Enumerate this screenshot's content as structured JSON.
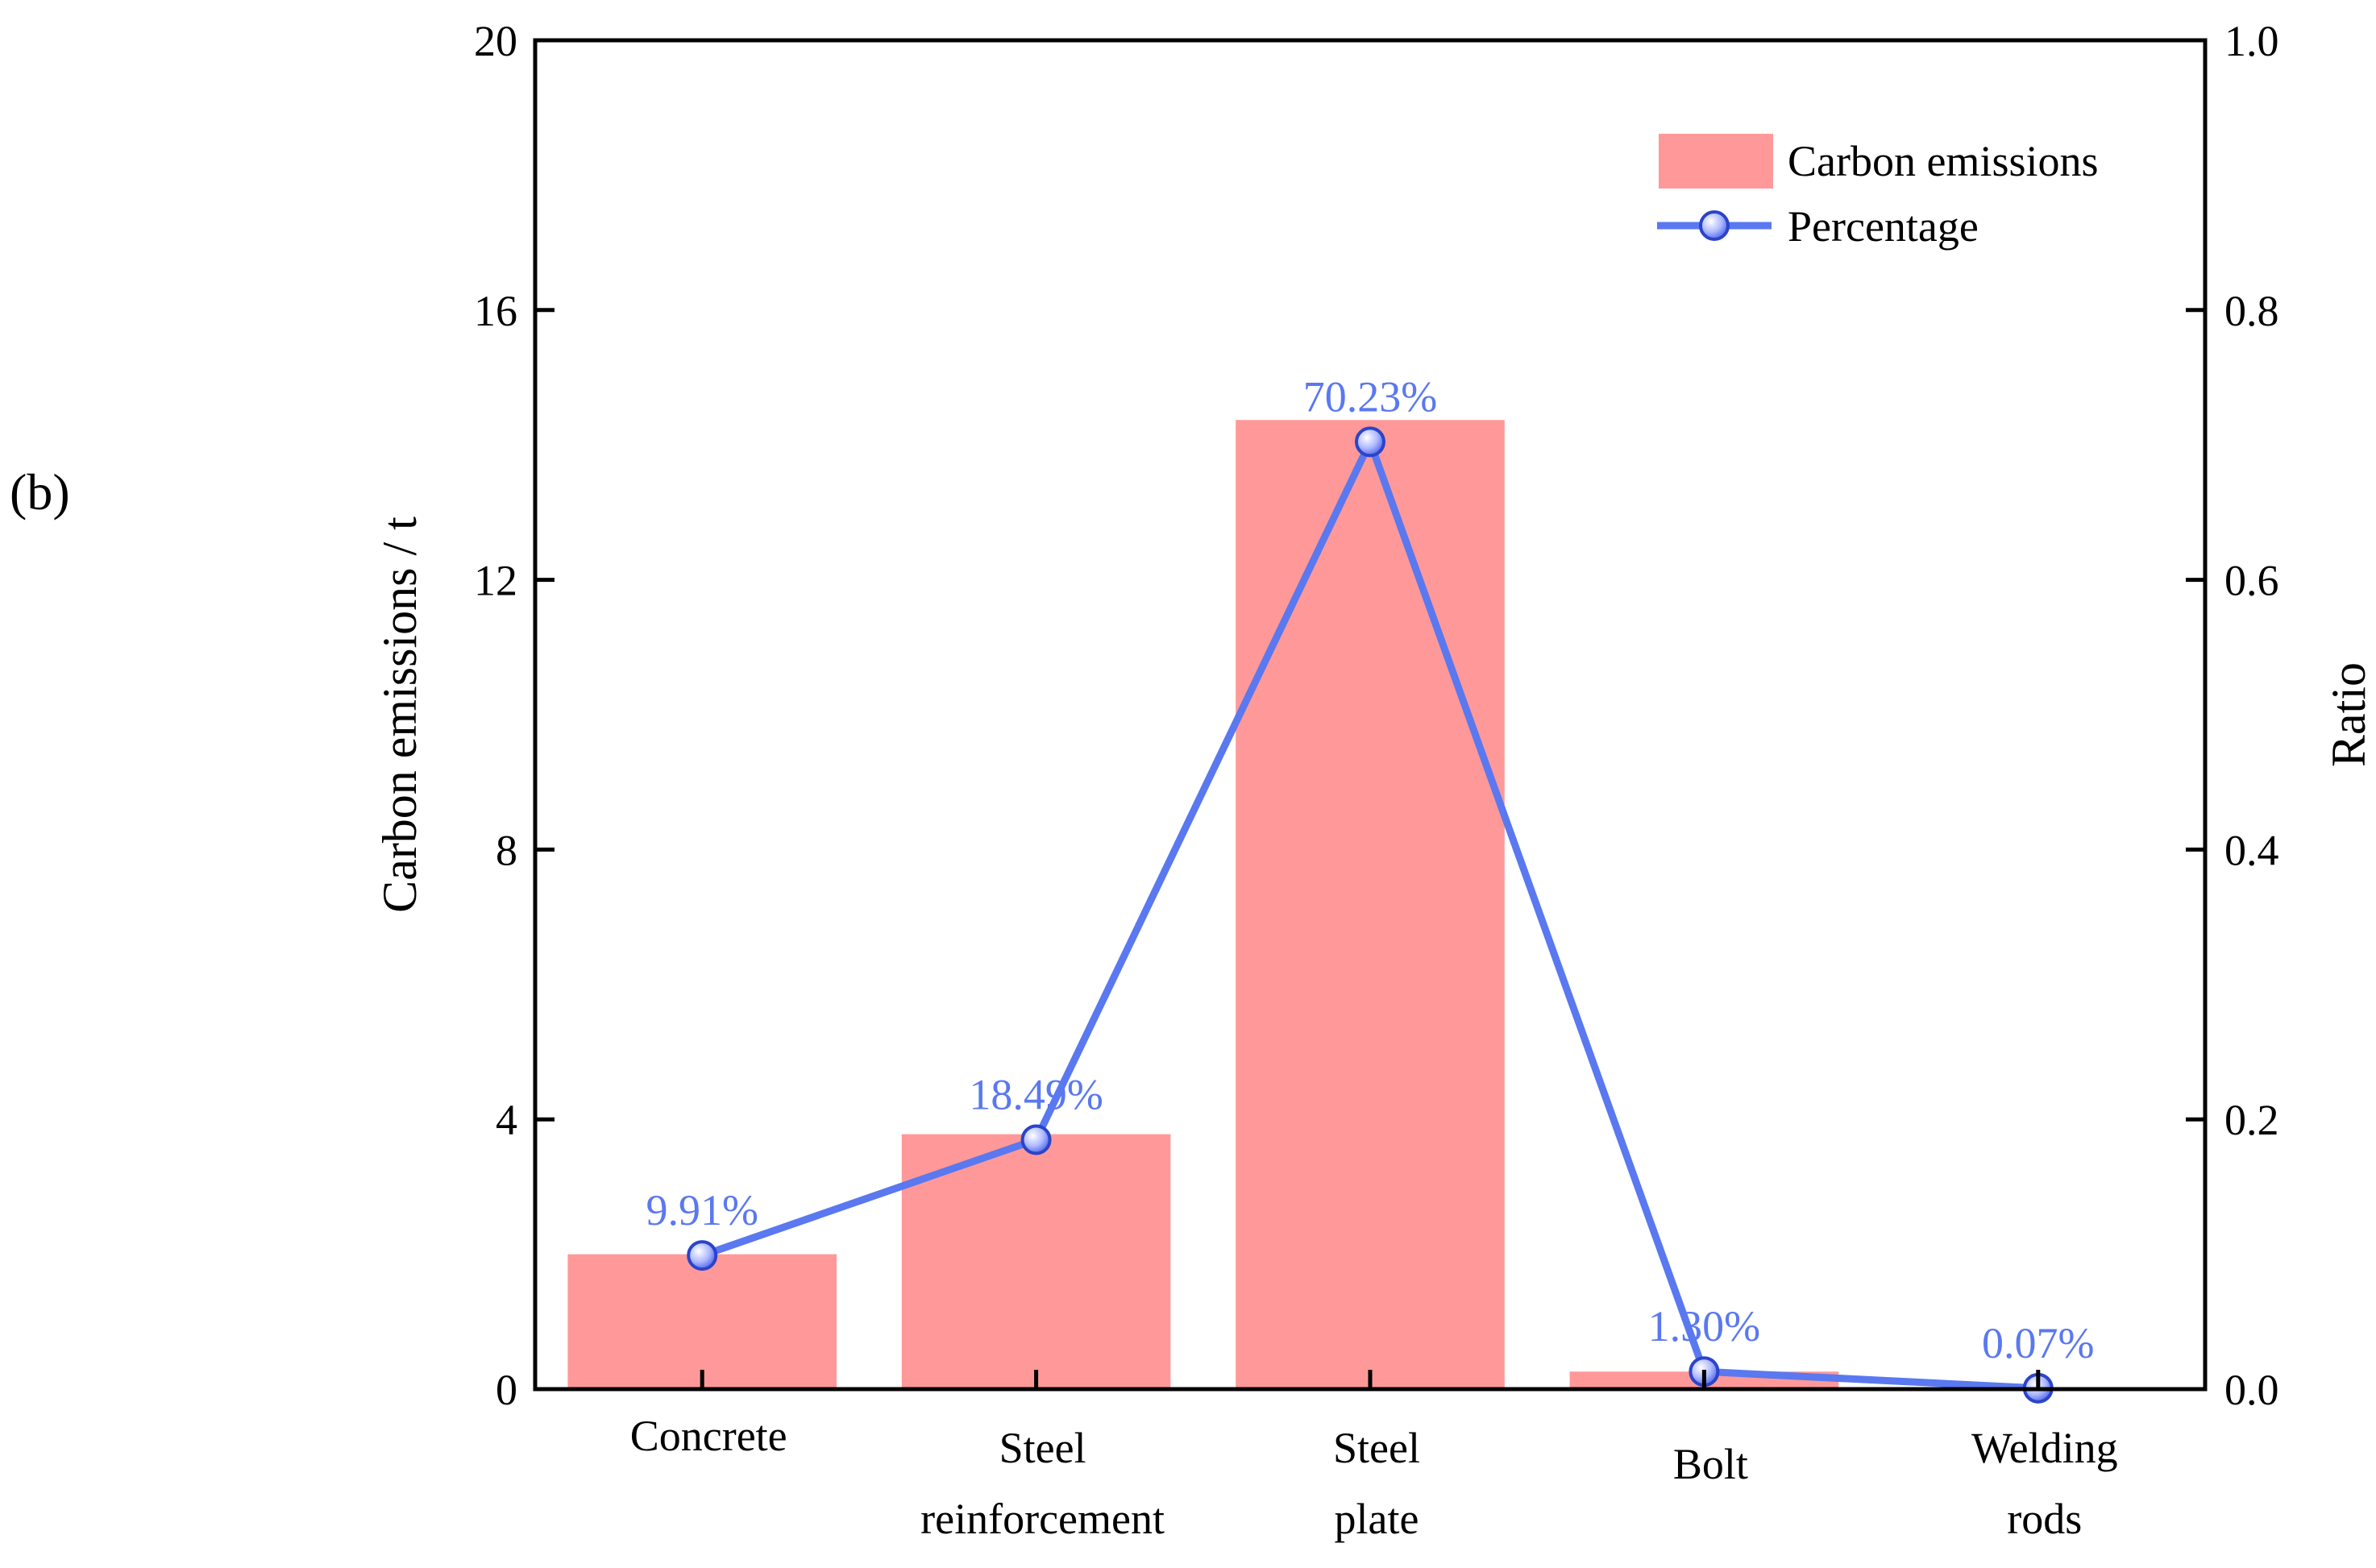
{
  "panel_label": "(b)",
  "chart_data": {
    "type": "bar",
    "categories": [
      "Concrete",
      "Steel reinforcement",
      "Steel plate",
      "Bolt",
      "Welding rods"
    ],
    "category_lines": [
      [
        "Concrete"
      ],
      [
        "Steel",
        "reinforcement"
      ],
      [
        "Steel",
        "plate"
      ],
      [
        "Bolt"
      ],
      [
        "Welding",
        "rods"
      ]
    ],
    "series": [
      {
        "name": "Carbon emissions",
        "type": "bar",
        "axis": "left",
        "color": "#ff9999",
        "values": [
          2.0,
          3.78,
          14.37,
          0.26,
          0.02
        ]
      },
      {
        "name": "Percentage",
        "type": "line",
        "axis": "right",
        "color": "#5a78f0",
        "values": [
          0.0991,
          0.1849,
          0.7023,
          0.013,
          0.0007
        ],
        "data_labels": [
          "9.91%",
          "18.49%",
          "70.23%",
          "1.30%",
          "0.07%"
        ]
      }
    ],
    "ylabel": "Carbon emissions / t",
    "ylabel_right": "Ratio",
    "ylim": [
      0,
      20
    ],
    "ylim_right": [
      0,
      1.0
    ],
    "yticks": [
      0,
      4,
      8,
      12,
      16,
      20
    ],
    "yticks_right": [
      0.0,
      0.2,
      0.4,
      0.6,
      0.8,
      1.0
    ],
    "ytick_labels_right": [
      "0.0",
      "0.2",
      "0.4",
      "0.6",
      "0.8",
      "1.0"
    ],
    "legend_position": "top-right",
    "grid": false
  }
}
